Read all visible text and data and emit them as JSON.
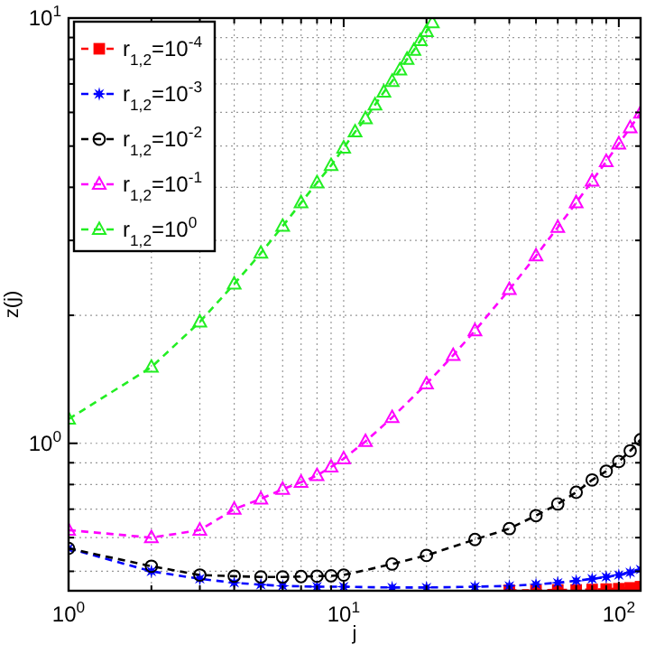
{
  "chart_data": {
    "type": "line",
    "xlabel": "j",
    "ylabel": "z(j)",
    "log": "xy",
    "grid": true,
    "legend": "top left",
    "line_style": "dashed",
    "xlim": [
      1,
      120
    ],
    "ylim": [
      0.45,
      10
    ],
    "xticks": [
      {
        "value": 1,
        "label": "10$^{0}$"
      },
      {
        "value": 2,
        "label": null
      },
      {
        "value": 3,
        "label": null
      },
      {
        "value": 4,
        "label": null
      },
      {
        "value": 5,
        "label": null
      },
      {
        "value": 6,
        "label": null
      },
      {
        "value": 7,
        "label": null
      },
      {
        "value": 8,
        "label": null
      },
      {
        "value": 9,
        "label": null
      },
      {
        "value": 10,
        "label": "10$^{1}$"
      },
      {
        "value": 20,
        "label": null
      },
      {
        "value": 30,
        "label": null
      },
      {
        "value": 40,
        "label": null
      },
      {
        "value": 50,
        "label": null
      },
      {
        "value": 60,
        "label": null
      },
      {
        "value": 70,
        "label": null
      },
      {
        "value": 80,
        "label": null
      },
      {
        "value": 90,
        "label": null
      },
      {
        "value": 100,
        "label": "10$^{2}$"
      }
    ],
    "yticks": [
      {
        "value": 0.5,
        "label": null
      },
      {
        "value": 0.6,
        "label": null
      },
      {
        "value": 0.7,
        "label": null
      },
      {
        "value": 0.8,
        "label": null
      },
      {
        "value": 0.9,
        "label": null
      },
      {
        "value": 1,
        "label": "10$^{0}$"
      },
      {
        "value": 2,
        "label": null
      },
      {
        "value": 3,
        "label": null
      },
      {
        "value": 4,
        "label": null
      },
      {
        "value": 5,
        "label": null
      },
      {
        "value": 6,
        "label": null
      },
      {
        "value": 7,
        "label": null
      },
      {
        "value": 8,
        "label": null
      },
      {
        "value": 9,
        "label": null
      },
      {
        "value": 10,
        "label": "10$^{1}$"
      }
    ],
    "series": [
      {
        "name": "r$_{1,2}$=10$^{-4}$",
        "color": "#ff0000",
        "marker": "square",
        "x": [
          40,
          50,
          60,
          70,
          80,
          90,
          100,
          110,
          120
        ],
        "values": [
          0.451,
          0.451,
          0.452,
          0.452,
          0.453,
          0.454,
          0.455,
          0.457,
          0.46
        ]
      },
      {
        "name": "r$_{1,2}$=10$^{-3}$",
        "color": "#0000ff",
        "marker": "star",
        "x": [
          1,
          2,
          3,
          4,
          5,
          6,
          8,
          10,
          15,
          20,
          30,
          40,
          50,
          60,
          70,
          80,
          90,
          100,
          110,
          120
        ],
        "values": [
          0.566,
          0.5,
          0.48,
          0.47,
          0.465,
          0.462,
          0.46,
          0.46,
          0.458,
          0.458,
          0.46,
          0.462,
          0.466,
          0.47,
          0.475,
          0.48,
          0.485,
          0.49,
          0.497,
          0.505
        ]
      },
      {
        "name": "r$_{1,2}$=10$^{-2}$",
        "color": "#000000",
        "marker": "circle",
        "x": [
          1,
          2,
          3,
          4,
          5,
          6,
          7,
          8,
          9,
          10,
          15,
          20,
          30,
          40,
          50,
          60,
          70,
          80,
          90,
          100,
          110,
          120
        ],
        "values": [
          0.566,
          0.514,
          0.49,
          0.487,
          0.485,
          0.485,
          0.486,
          0.487,
          0.488,
          0.49,
          0.52,
          0.545,
          0.594,
          0.63,
          0.676,
          0.72,
          0.767,
          0.82,
          0.86,
          0.906,
          0.96,
          1.02
        ]
      },
      {
        "name": "r$_{1,2}$=10$^{-1}$",
        "color": "#ff00ff",
        "marker": "triangle",
        "x": [
          1,
          2,
          3,
          4,
          5,
          6,
          7,
          8,
          9,
          10,
          12,
          15,
          20,
          25,
          30,
          40,
          50,
          60,
          70,
          80,
          90,
          100,
          110,
          120
        ],
        "values": [
          0.625,
          0.6,
          0.625,
          0.7,
          0.74,
          0.78,
          0.81,
          0.84,
          0.88,
          0.92,
          1.01,
          1.15,
          1.38,
          1.61,
          1.84,
          2.3,
          2.76,
          3.22,
          3.68,
          4.14,
          4.6,
          5.06,
          5.52,
          5.98
        ]
      },
      {
        "name": "r$_{1,2}$=10$^{0}$",
        "color": "#22ee22",
        "marker": "triangle",
        "x": [
          1,
          2,
          3,
          4,
          5,
          6,
          7,
          8,
          9,
          10,
          11,
          12,
          13,
          14,
          15,
          16,
          17,
          18,
          19,
          20,
          21
        ],
        "values": [
          1.14,
          1.51,
          1.93,
          2.37,
          2.8,
          3.24,
          3.68,
          4.1,
          4.5,
          4.95,
          5.4,
          5.8,
          6.25,
          6.7,
          7.1,
          7.55,
          8.0,
          8.4,
          8.85,
          9.3,
          9.75
        ]
      }
    ]
  }
}
